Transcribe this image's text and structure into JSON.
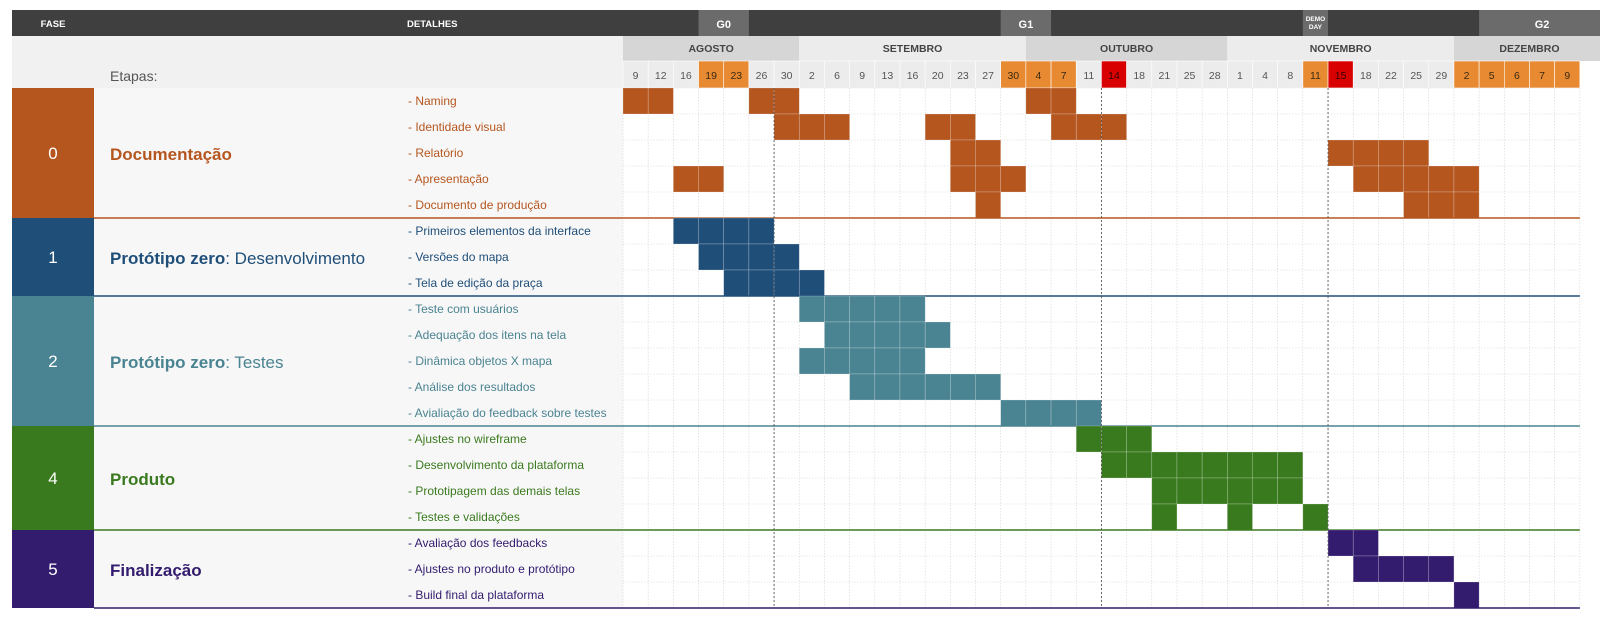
{
  "header": {
    "fase_label": "FASE",
    "detalhes_label": "DETALHES",
    "etapas_label": "Etapas:",
    "milestones": [
      {
        "label": "G0",
        "col_start": 3,
        "col_end": 4
      },
      {
        "label": "G1",
        "col_start": 15,
        "col_end": 16
      },
      {
        "label": "DEMO DAY",
        "col_start": 27,
        "col_end": 27
      },
      {
        "label": "G2",
        "col_start": 34,
        "col_end": 38
      }
    ],
    "months": [
      {
        "label": "AGOSTO",
        "col_start": 0,
        "col_end": 6,
        "shade": true
      },
      {
        "label": "SETEMBRO",
        "col_start": 7,
        "col_end": 15,
        "shade": false
      },
      {
        "label": "OUTUBRO",
        "col_start": 16,
        "col_end": 23,
        "shade": true
      },
      {
        "label": "NOVEMBRO",
        "col_start": 24,
        "col_end": 32,
        "shade": false
      },
      {
        "label": "DEZEMBRO",
        "col_start": 33,
        "col_end": 38,
        "shade": true
      }
    ]
  },
  "chart_data": {
    "type": "gantt",
    "days": [
      "9",
      "12",
      "16",
      "19",
      "23",
      "26",
      "30",
      "2",
      "6",
      "9",
      "13",
      "16",
      "20",
      "23",
      "27",
      "30",
      "4",
      "7",
      "11",
      "14",
      "18",
      "21",
      "25",
      "28",
      "1",
      "4",
      "8",
      "11",
      "15",
      "18",
      "22",
      "25",
      "29",
      "2",
      "5",
      "6",
      "7",
      "9"
    ],
    "day_highlights": {
      "orange": [
        3,
        4,
        15,
        16,
        17,
        27,
        33,
        34,
        35,
        36,
        37
      ],
      "red": [
        19,
        28
      ]
    },
    "month_dividers": [
      6,
      19,
      28
    ],
    "phases": [
      {
        "number": "0",
        "title_bold": "Documentação",
        "title_rest": "",
        "color": "#B5561F",
        "tasks": [
          {
            "label": "- Naming",
            "cells": [
              0,
              1,
              5,
              6,
              16,
              17
            ]
          },
          {
            "label": "- Identidade visual",
            "cells": [
              6,
              7,
              8,
              12,
              13,
              17,
              18,
              19
            ]
          },
          {
            "label": "- Relatório",
            "cells": [
              13,
              14,
              28,
              29,
              30,
              31
            ]
          },
          {
            "label": "- Apresentação",
            "cells": [
              2,
              3,
              13,
              14,
              15,
              29,
              30,
              31,
              32,
              33
            ]
          },
          {
            "label": "- Documento de produção",
            "cells": [
              14,
              31,
              32,
              33
            ]
          }
        ]
      },
      {
        "number": "1",
        "title_bold": "Protótipo zero",
        "title_rest": ": Desenvolvimento",
        "color": "#1F4E79",
        "tasks": [
          {
            "label": "- Primeiros elementos da interface",
            "cells": [
              2,
              3,
              4,
              5
            ]
          },
          {
            "label": "- Versões do mapa",
            "cells": [
              3,
              4,
              5,
              6
            ]
          },
          {
            "label": "- Tela de edição da praça",
            "cells": [
              4,
              5,
              6,
              7
            ]
          }
        ]
      },
      {
        "number": "2",
        "title_bold": "Protótipo zero",
        "title_rest": ": Testes",
        "color": "#4A8391",
        "tasks": [
          {
            "label": "- Teste com usuários",
            "cells": [
              7,
              8,
              9,
              10,
              11
            ]
          },
          {
            "label": "- Adequação dos itens na tela",
            "cells": [
              8,
              9,
              10,
              11,
              12
            ]
          },
          {
            "label": "- Dinâmica objetos X mapa",
            "cells": [
              7,
              8,
              9,
              10,
              11
            ]
          },
          {
            "label": "- Análise dos resultados",
            "cells": [
              9,
              10,
              11,
              12,
              13,
              14
            ]
          },
          {
            "label": "- Avialiação do feedback sobre testes",
            "cells": [
              15,
              16,
              17,
              18
            ]
          }
        ]
      },
      {
        "number": "4",
        "title_bold": "Produto",
        "title_rest": "",
        "color": "#3A7A1E",
        "tasks": [
          {
            "label": "- Ajustes no wireframe",
            "cells": [
              18,
              19,
              20
            ]
          },
          {
            "label": "- Desenvolvimento da plataforma",
            "cells": [
              19,
              20,
              21,
              22,
              23,
              24,
              25,
              26
            ]
          },
          {
            "label": "- Prototipagem das demais telas",
            "cells": [
              21,
              22,
              23,
              24,
              25,
              26
            ]
          },
          {
            "label": "- Testes e validações",
            "cells": [
              21,
              24,
              27
            ]
          }
        ]
      },
      {
        "number": "5",
        "title_bold": "Finalização",
        "title_rest": "",
        "color": "#331B6E",
        "tasks": [
          {
            "label": "- Avaliação dos feedbacks",
            "cells": [
              28,
              29
            ]
          },
          {
            "label": "- Ajustes no produto e protótipo",
            "cells": [
              29,
              30,
              31,
              32
            ]
          },
          {
            "label": "- Build final da plataforma",
            "cells": [
              33
            ]
          }
        ]
      }
    ]
  }
}
